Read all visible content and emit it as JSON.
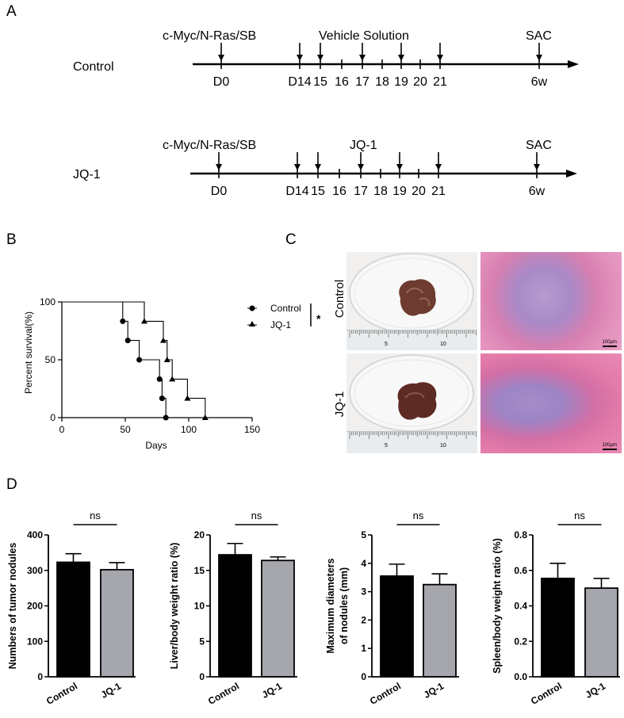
{
  "panels": {
    "A": "A",
    "B": "B",
    "C": "C",
    "D": "D"
  },
  "timeline": {
    "control": {
      "row_label": "Control",
      "top_labels": [
        "c-Myc/N-Ras/SB",
        "Vehicle Solution",
        "SAC"
      ],
      "ticks": [
        "D0",
        "D14",
        "15",
        "16",
        "17",
        "18",
        "19",
        "20",
        "21",
        "6w"
      ]
    },
    "jq1": {
      "row_label": "JQ-1",
      "top_labels": [
        "c-Myc/N-Ras/SB",
        "JQ-1",
        "SAC"
      ],
      "ticks": [
        "D0",
        "D14",
        "15",
        "16",
        "17",
        "18",
        "19",
        "20",
        "21",
        "6w"
      ]
    }
  },
  "panel_c": {
    "row_labels": [
      "Control",
      "JQ-1"
    ],
    "scale_bar": "100μm",
    "ruler_numbers": [
      "5",
      "10"
    ]
  },
  "chart_data": [
    {
      "type": "line",
      "subtype": "kaplan-meier",
      "xlabel": "Days",
      "ylabel": "Percent survival(%)",
      "xlim": [
        0,
        150
      ],
      "ylim": [
        0,
        100
      ],
      "xticks": [
        "0",
        "50",
        "100",
        "150"
      ],
      "yticks": [
        "0",
        "50",
        "100"
      ],
      "significance": "*",
      "series": [
        {
          "name": "Control",
          "marker": "circle",
          "steps": [
            [
              0,
              100
            ],
            [
              48,
              100
            ],
            [
              48,
              83.3
            ],
            [
              52,
              83.3
            ],
            [
              52,
              66.7
            ],
            [
              61,
              66.7
            ],
            [
              61,
              50
            ],
            [
              77,
              50
            ],
            [
              77,
              33.3
            ],
            [
              79,
              33.3
            ],
            [
              79,
              16.7
            ],
            [
              82,
              16.7
            ],
            [
              82,
              0
            ]
          ],
          "points": [
            [
              48,
              83.3
            ],
            [
              52,
              66.7
            ],
            [
              61,
              50
            ],
            [
              77,
              33.3
            ],
            [
              79,
              16.7
            ],
            [
              82,
              0
            ]
          ]
        },
        {
          "name": "JQ-1",
          "marker": "triangle",
          "steps": [
            [
              0,
              100
            ],
            [
              65,
              100
            ],
            [
              65,
              83.3
            ],
            [
              80,
              83.3
            ],
            [
              80,
              66.7
            ],
            [
              83,
              66.7
            ],
            [
              83,
              50
            ],
            [
              87,
              50
            ],
            [
              87,
              33.3
            ],
            [
              99,
              33.3
            ],
            [
              99,
              16.7
            ],
            [
              113,
              16.7
            ],
            [
              113,
              0
            ]
          ],
          "points": [
            [
              65,
              83.3
            ],
            [
              80,
              66.7
            ],
            [
              83,
              50
            ],
            [
              87,
              33.3
            ],
            [
              99,
              16.7
            ],
            [
              113,
              0
            ]
          ]
        }
      ]
    },
    {
      "type": "bar",
      "categories": [
        "Control",
        "JQ-1"
      ],
      "values": [
        323,
        302
      ],
      "errors": [
        24,
        20
      ],
      "ylabel": "Numbers of tumor nodules",
      "ylim": [
        0,
        400
      ],
      "yticks": [
        "0",
        "100",
        "200",
        "300",
        "400"
      ],
      "significance": "ns",
      "colors": [
        "#000000",
        "#a6a6ad"
      ]
    },
    {
      "type": "bar",
      "categories": [
        "Control",
        "JQ-1"
      ],
      "values": [
        17.2,
        16.4
      ],
      "errors": [
        1.6,
        0.5
      ],
      "ylabel": "Liver/body weight ratio (%)",
      "ylim": [
        0,
        20
      ],
      "yticks": [
        "0",
        "5",
        "10",
        "15",
        "20"
      ],
      "significance": "ns",
      "colors": [
        "#000000",
        "#a6a6ad"
      ]
    },
    {
      "type": "bar",
      "categories": [
        "Control",
        "JQ-1"
      ],
      "values": [
        3.55,
        3.25
      ],
      "errors": [
        0.42,
        0.38
      ],
      "ylabel": "Maximum diameters of nodules (mm)",
      "ylabel_lines": [
        "Maximum diameters",
        "of nodules (mm)"
      ],
      "ylim": [
        0,
        5
      ],
      "yticks": [
        "0",
        "1",
        "2",
        "3",
        "4",
        "5"
      ],
      "significance": "ns",
      "colors": [
        "#000000",
        "#a6a6ad"
      ]
    },
    {
      "type": "bar",
      "categories": [
        "Control",
        "JQ-1"
      ],
      "values": [
        0.555,
        0.5
      ],
      "errors": [
        0.085,
        0.055
      ],
      "ylabel": "Spleen/body weight ratio (%)",
      "ylim": [
        0,
        0.8
      ],
      "yticks": [
        "0.0",
        "0.2",
        "0.4",
        "0.6",
        "0.8"
      ],
      "significance": "ns",
      "colors": [
        "#000000",
        "#a6a6ad"
      ]
    }
  ]
}
